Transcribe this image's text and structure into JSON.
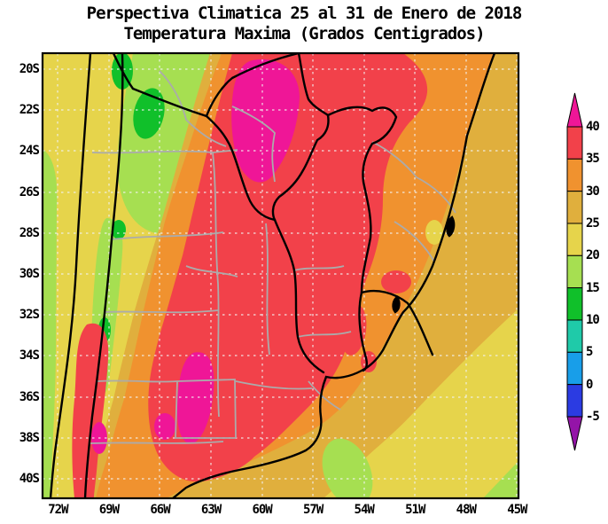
{
  "title": {
    "line1": "Perspectiva Climatica 25 al 31 de Enero de 2018",
    "line2": "Temperatura Maxima (Grados Centigrados)"
  },
  "axes": {
    "lat_labels": [
      "20S",
      "22S",
      "24S",
      "26S",
      "28S",
      "30S",
      "32S",
      "34S",
      "36S",
      "38S",
      "40S"
    ],
    "lon_labels": [
      "72W",
      "69W",
      "66W",
      "63W",
      "60W",
      "57W",
      "54W",
      "51W",
      "48W",
      "45W"
    ]
  },
  "colorbar": {
    "tick_labels": [
      "40",
      "35",
      "30",
      "25",
      "20",
      "15",
      "10",
      "5",
      "0",
      "-5"
    ],
    "bands": [
      {
        "range": "35 to 40",
        "color": "#F2414A"
      },
      {
        "range": "30 to 35",
        "color": "#F0922F"
      },
      {
        "range": "25 to 30",
        "color": "#E0AF3D"
      },
      {
        "range": "20 to 25",
        "color": "#E6D44B"
      },
      {
        "range": "15 to 20",
        "color": "#A6DF51"
      },
      {
        "range": "10 to 15",
        "color": "#10C02A"
      },
      {
        "range": "5 to 10",
        "color": "#1FCAA9"
      },
      {
        "range": "0 to 5",
        "color": "#189EE9"
      },
      {
        "range": "-5 to 0",
        "color": "#2B3BE2"
      }
    ],
    "above_color": "#EF1697",
    "below_color": "#9414A8"
  },
  "palette": {
    "magenta": "#EF1697",
    "red": "#F2414A",
    "orange": "#F0922F",
    "amber": "#E0AF3D",
    "yellow": "#E6D44B",
    "yellowgreen": "#A6DF51",
    "green": "#10C02A",
    "teal": "#1FCAA9",
    "lightblue": "#189EE9",
    "blue": "#2B3BE2",
    "purple": "#9414A8",
    "border_black": "#000000",
    "border_gray": "#ABABAB",
    "grid_line": "#F2F2F2"
  }
}
